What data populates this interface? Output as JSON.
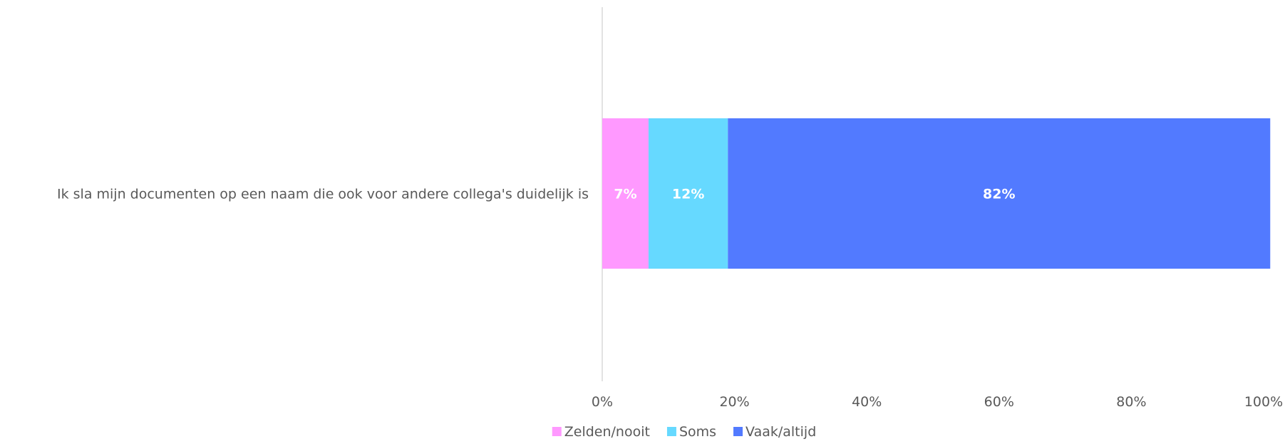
{
  "chart_data": {
    "type": "bar",
    "orientation": "horizontal",
    "stacked": true,
    "categories": [
      "Ik sla mijn documenten op een naam die ook voor andere collega's duidelijk is"
    ],
    "series": [
      {
        "name": "Zelden/nooit",
        "values": [
          7
        ],
        "label": "7%",
        "color": "#ff99ff"
      },
      {
        "name": "Soms",
        "values": [
          12
        ],
        "label": "12%",
        "color": "#66d9ff"
      },
      {
        "name": "Vaak/altijd",
        "values": [
          82
        ],
        "label": "82%",
        "color": "#527aff"
      }
    ],
    "xlim": [
      0,
      100
    ],
    "x_ticks": [
      "0%",
      "20%",
      "40%",
      "60%",
      "80%",
      "100%"
    ],
    "grid": false,
    "legend": "bottom"
  }
}
